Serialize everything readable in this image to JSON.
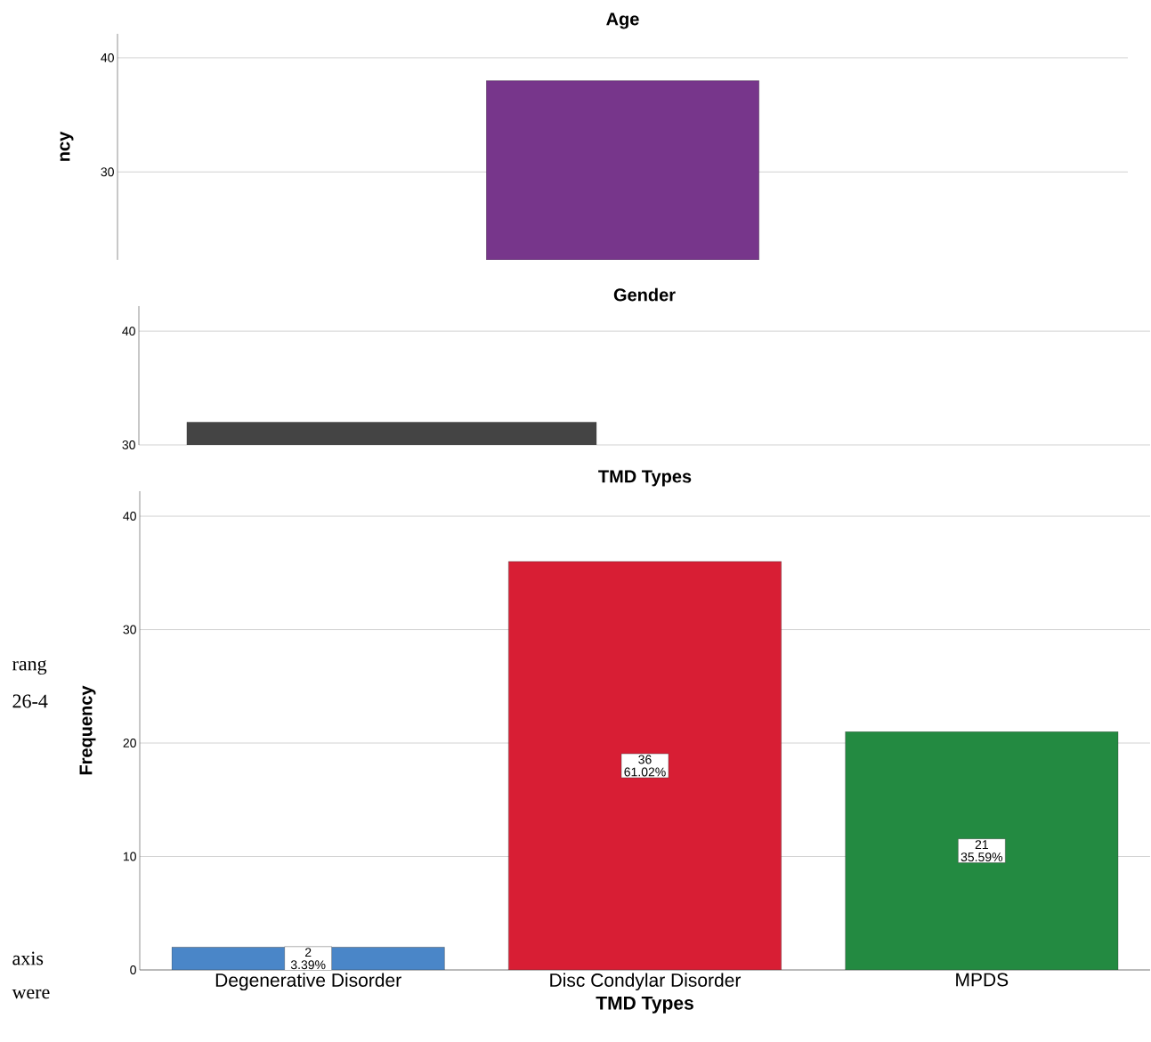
{
  "chart_data": [
    {
      "type": "bar",
      "title": "Age",
      "ylabel": "ncy",
      "categories": [
        null,
        null,
        null
      ],
      "values": [
        null,
        38,
        null
      ],
      "colors": [
        "#77368b",
        "#77368b",
        "#77368b"
      ],
      "ylim": [
        22.3,
        42.1
      ],
      "yticks": [
        30,
        40
      ],
      "grid": "y"
    },
    {
      "type": "bar",
      "title": "Gender",
      "categories": [
        null,
        null
      ],
      "values": [
        32,
        null
      ],
      "colors": [
        "#444444",
        "#444444"
      ],
      "ylim": [
        30,
        42.2
      ],
      "yticks": [
        30,
        40
      ],
      "grid": "y"
    },
    {
      "type": "bar",
      "title": "TMD Types",
      "xlabel": "TMD Types",
      "ylabel": "Frequency",
      "categories": [
        "Degenerative Disorder",
        "Disc Condylar Disorder",
        "MPDS"
      ],
      "values": [
        2,
        36,
        21
      ],
      "colors": [
        "#4a86c8",
        "#d81e34",
        "#238a41"
      ],
      "value_labels": [
        "2 3.39%",
        "36 61.02%",
        "21 35.59%"
      ],
      "ylim": [
        0,
        42.2
      ],
      "yticks": [
        0,
        10,
        20,
        30,
        40
      ],
      "grid": "y",
      "annotations": [
        "rang",
        "26-4",
        "axis",
        "were"
      ]
    }
  ]
}
